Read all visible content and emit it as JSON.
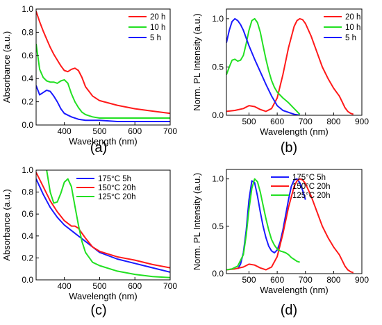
{
  "colors": {
    "red": "#ff1a1a",
    "green": "#22e022",
    "blue": "#1a1aff",
    "axis": "#000000"
  },
  "panel_labels": [
    "(a)",
    "(b)",
    "(c)",
    "(d)"
  ],
  "chart_data": [
    {
      "type": "line",
      "xlabel": "Wavelength (nm)",
      "ylabel": "Absorbance (a.u.)",
      "xlim": [
        320,
        700
      ],
      "ylim": [
        0,
        1.0
      ],
      "xticks": [
        400,
        500,
        600,
        700
      ],
      "yticks": [
        0.0,
        0.2,
        0.4,
        0.6,
        0.8,
        1.0
      ],
      "legend_position": "top-right",
      "series": [
        {
          "name": "20 h",
          "color": "#ff1a1a",
          "x": [
            320,
            330,
            340,
            350,
            360,
            370,
            380,
            390,
            400,
            410,
            420,
            430,
            440,
            450,
            460,
            480,
            500,
            550,
            600,
            650,
            700
          ],
          "y": [
            0.98,
            0.89,
            0.81,
            0.74,
            0.67,
            0.61,
            0.56,
            0.51,
            0.47,
            0.46,
            0.48,
            0.49,
            0.47,
            0.41,
            0.33,
            0.25,
            0.21,
            0.17,
            0.14,
            0.12,
            0.1
          ]
        },
        {
          "name": "10 h",
          "color": "#22e022",
          "x": [
            320,
            330,
            340,
            350,
            360,
            370,
            380,
            390,
            400,
            410,
            420,
            430,
            440,
            450,
            460,
            480,
            500,
            550,
            600,
            650,
            700
          ],
          "y": [
            0.7,
            0.48,
            0.41,
            0.38,
            0.37,
            0.37,
            0.36,
            0.38,
            0.39,
            0.36,
            0.27,
            0.2,
            0.15,
            0.11,
            0.09,
            0.07,
            0.06,
            0.06,
            0.06,
            0.06,
            0.06
          ]
        },
        {
          "name": "5 h",
          "color": "#1a1aff",
          "x": [
            320,
            330,
            340,
            350,
            360,
            370,
            380,
            390,
            400,
            420,
            440,
            460,
            480,
            500,
            550,
            600,
            650,
            700
          ],
          "y": [
            0.34,
            0.26,
            0.28,
            0.3,
            0.29,
            0.25,
            0.2,
            0.14,
            0.1,
            0.07,
            0.05,
            0.04,
            0.04,
            0.04,
            0.03,
            0.03,
            0.03,
            0.03
          ]
        }
      ]
    },
    {
      "type": "line",
      "xlabel": "Wavelength (nm)",
      "ylabel": "Norm. PL Intensity (a.u.)",
      "xlim": [
        420,
        900
      ],
      "ylim": [
        0,
        1.1
      ],
      "xticks": [
        500,
        600,
        700,
        800,
        900
      ],
      "yticks": [
        0.0,
        0.5,
        1.0
      ],
      "legend_position": "top-right",
      "series": [
        {
          "name": "20 h",
          "color": "#ff1a1a",
          "x": [
            420,
            450,
            480,
            500,
            520,
            540,
            560,
            580,
            600,
            620,
            640,
            660,
            670,
            680,
            690,
            700,
            720,
            740,
            760,
            780,
            800,
            820,
            830,
            840,
            850,
            860,
            870
          ],
          "y": [
            0.04,
            0.05,
            0.07,
            0.1,
            0.09,
            0.06,
            0.04,
            0.07,
            0.18,
            0.42,
            0.7,
            0.92,
            0.98,
            1.0,
            0.99,
            0.95,
            0.82,
            0.66,
            0.5,
            0.38,
            0.28,
            0.2,
            0.14,
            0.08,
            0.04,
            0.02,
            0.01
          ]
        },
        {
          "name": "10 h",
          "color": "#22e022",
          "x": [
            420,
            430,
            440,
            450,
            460,
            470,
            480,
            490,
            500,
            510,
            520,
            530,
            540,
            550,
            560,
            570,
            580,
            590,
            600,
            620,
            640,
            660,
            680
          ],
          "y": [
            0.42,
            0.5,
            0.57,
            0.58,
            0.56,
            0.57,
            0.62,
            0.74,
            0.88,
            0.98,
            1.0,
            0.96,
            0.86,
            0.72,
            0.58,
            0.46,
            0.36,
            0.29,
            0.24,
            0.18,
            0.13,
            0.07,
            0.01
          ]
        },
        {
          "name": "5 h",
          "color": "#1a1aff",
          "x": [
            420,
            430,
            440,
            450,
            460,
            470,
            480,
            490,
            500,
            520,
            540,
            560,
            580,
            600,
            620,
            640,
            660,
            680
          ],
          "y": [
            0.75,
            0.88,
            0.97,
            1.0,
            0.98,
            0.94,
            0.88,
            0.8,
            0.72,
            0.58,
            0.45,
            0.32,
            0.2,
            0.1,
            0.05,
            0.03,
            0.01,
            0.0
          ]
        }
      ]
    },
    {
      "type": "line",
      "xlabel": "Wavelength (nm)",
      "ylabel": "Absorbance (a.u.)",
      "xlim": [
        320,
        700
      ],
      "ylim": [
        0,
        1.0
      ],
      "xticks": [
        400,
        500,
        600,
        700
      ],
      "yticks": [
        0.0,
        0.2,
        0.4,
        0.6,
        0.8,
        1.0
      ],
      "legend_position": "top-right",
      "series": [
        {
          "name": "175°C 5h",
          "color": "#1a1aff",
          "x": [
            320,
            340,
            360,
            380,
            400,
            420,
            440,
            460,
            480,
            500,
            550,
            600,
            650,
            700
          ],
          "y": [
            0.92,
            0.78,
            0.66,
            0.57,
            0.5,
            0.45,
            0.4,
            0.35,
            0.3,
            0.25,
            0.19,
            0.15,
            0.11,
            0.07
          ]
        },
        {
          "name": "150°C 20h",
          "color": "#ff1a1a",
          "x": [
            320,
            340,
            360,
            380,
            400,
            420,
            430,
            440,
            460,
            480,
            500,
            550,
            600,
            650,
            700
          ],
          "y": [
            0.98,
            0.85,
            0.72,
            0.62,
            0.54,
            0.49,
            0.49,
            0.47,
            0.38,
            0.3,
            0.26,
            0.21,
            0.18,
            0.14,
            0.11
          ]
        },
        {
          "name": "125°C 20h",
          "color": "#22e022",
          "x": [
            350,
            360,
            370,
            380,
            390,
            400,
            410,
            420,
            430,
            440,
            450,
            460,
            480,
            500,
            550,
            600,
            650,
            700
          ],
          "y": [
            1.0,
            0.8,
            0.7,
            0.71,
            0.79,
            0.89,
            0.92,
            0.85,
            0.67,
            0.5,
            0.35,
            0.25,
            0.16,
            0.13,
            0.08,
            0.05,
            0.03,
            0.02
          ]
        }
      ]
    },
    {
      "type": "line",
      "xlabel": "Wavelength (nm)",
      "ylabel": "Norm. PL Intensity (a.u.)",
      "xlim": [
        420,
        900
      ],
      "ylim": [
        0,
        1.1
      ],
      "xticks": [
        500,
        600,
        700,
        800,
        900
      ],
      "yticks": [
        0.0,
        0.5,
        1.0
      ],
      "legend_position": "top-right",
      "series": [
        {
          "name": "175°C 5h",
          "color": "#1a1aff",
          "x": [
            460,
            470,
            480,
            490,
            500,
            510,
            520,
            530,
            540,
            550,
            560,
            570,
            580,
            590,
            600,
            610,
            620,
            630,
            640,
            650,
            660,
            670,
            680,
            690,
            700
          ],
          "y": [
            0.05,
            0.1,
            0.22,
            0.45,
            0.78,
            0.98,
            0.96,
            0.82,
            0.65,
            0.5,
            0.38,
            0.29,
            0.24,
            0.22,
            0.25,
            0.33,
            0.46,
            0.62,
            0.78,
            0.92,
            0.99,
            1.0,
            0.96,
            0.88,
            0.78
          ]
        },
        {
          "name": "150°C 20h",
          "color": "#ff1a1a",
          "x": [
            420,
            450,
            480,
            500,
            520,
            540,
            560,
            580,
            600,
            620,
            640,
            660,
            670,
            680,
            690,
            700,
            720,
            740,
            760,
            780,
            800,
            820,
            830,
            840,
            850,
            860,
            870
          ],
          "y": [
            0.04,
            0.05,
            0.07,
            0.1,
            0.09,
            0.06,
            0.04,
            0.07,
            0.18,
            0.42,
            0.7,
            0.92,
            0.98,
            1.0,
            0.99,
            0.95,
            0.82,
            0.66,
            0.5,
            0.38,
            0.28,
            0.2,
            0.14,
            0.08,
            0.04,
            0.02,
            0.01
          ]
        },
        {
          "name": "125°C 20h",
          "color": "#22e022",
          "x": [
            420,
            440,
            460,
            480,
            490,
            500,
            510,
            520,
            530,
            540,
            550,
            560,
            570,
            580,
            590,
            600,
            610,
            620,
            630,
            640,
            650,
            660,
            670,
            680
          ],
          "y": [
            0.04,
            0.05,
            0.08,
            0.2,
            0.4,
            0.68,
            0.9,
            1.0,
            0.97,
            0.86,
            0.72,
            0.58,
            0.46,
            0.36,
            0.3,
            0.26,
            0.24,
            0.23,
            0.22,
            0.2,
            0.17,
            0.15,
            0.13,
            0.12
          ]
        }
      ]
    }
  ]
}
